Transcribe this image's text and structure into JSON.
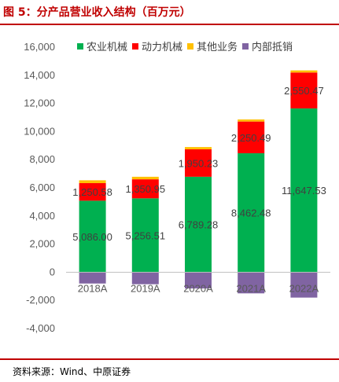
{
  "header": {
    "title": "图 5：分产品营业收入结构（百万元）"
  },
  "footer": {
    "source": "资料来源：Wind、中原证券"
  },
  "colors": {
    "agri": "#00b050",
    "power": "#ff0000",
    "other": "#ffc000",
    "offset": "#8064a2",
    "accent": "#c00000"
  },
  "chart_data": {
    "type": "bar",
    "stacked": true,
    "title": "",
    "xlabel": "",
    "ylabel": "",
    "categories": [
      "2018A",
      "2019A",
      "2020A",
      "2021A",
      "2022A"
    ],
    "ylim": [
      -4000,
      16000
    ],
    "yticks": [
      -4000,
      -2000,
      0,
      2000,
      4000,
      6000,
      8000,
      10000,
      12000,
      14000,
      16000
    ],
    "ytick_labels": [
      "-4,000",
      "-2,000",
      "0",
      "2,000",
      "4,000",
      "6,000",
      "8,000",
      "10,000",
      "12,000",
      "14,000",
      "16,000"
    ],
    "legend_position": "top-right",
    "grid": false,
    "series": [
      {
        "name": "农业机械",
        "color_key": "agri",
        "values": [
          5086.0,
          5256.51,
          6789.28,
          8462.48,
          11647.53
        ],
        "labels": [
          "5,086.00",
          "5,256.51",
          "6,789.28",
          "8,462.48",
          "11,647.53"
        ]
      },
      {
        "name": "动力机械",
        "color_key": "power",
        "values": [
          1250.58,
          1350.95,
          1950.23,
          2250.49,
          2550.47
        ],
        "labels": [
          "1,250.58",
          "1,350.95",
          "1,950.23",
          "2,250.49",
          "2,550.47"
        ]
      },
      {
        "name": "其他业务",
        "color_key": "other",
        "values": [
          200,
          180,
          160,
          150,
          150
        ],
        "labels": []
      },
      {
        "name": "内部抵销",
        "color_key": "offset",
        "values": [
          -800,
          -850,
          -1150,
          -1500,
          -1800
        ],
        "labels": []
      }
    ]
  }
}
